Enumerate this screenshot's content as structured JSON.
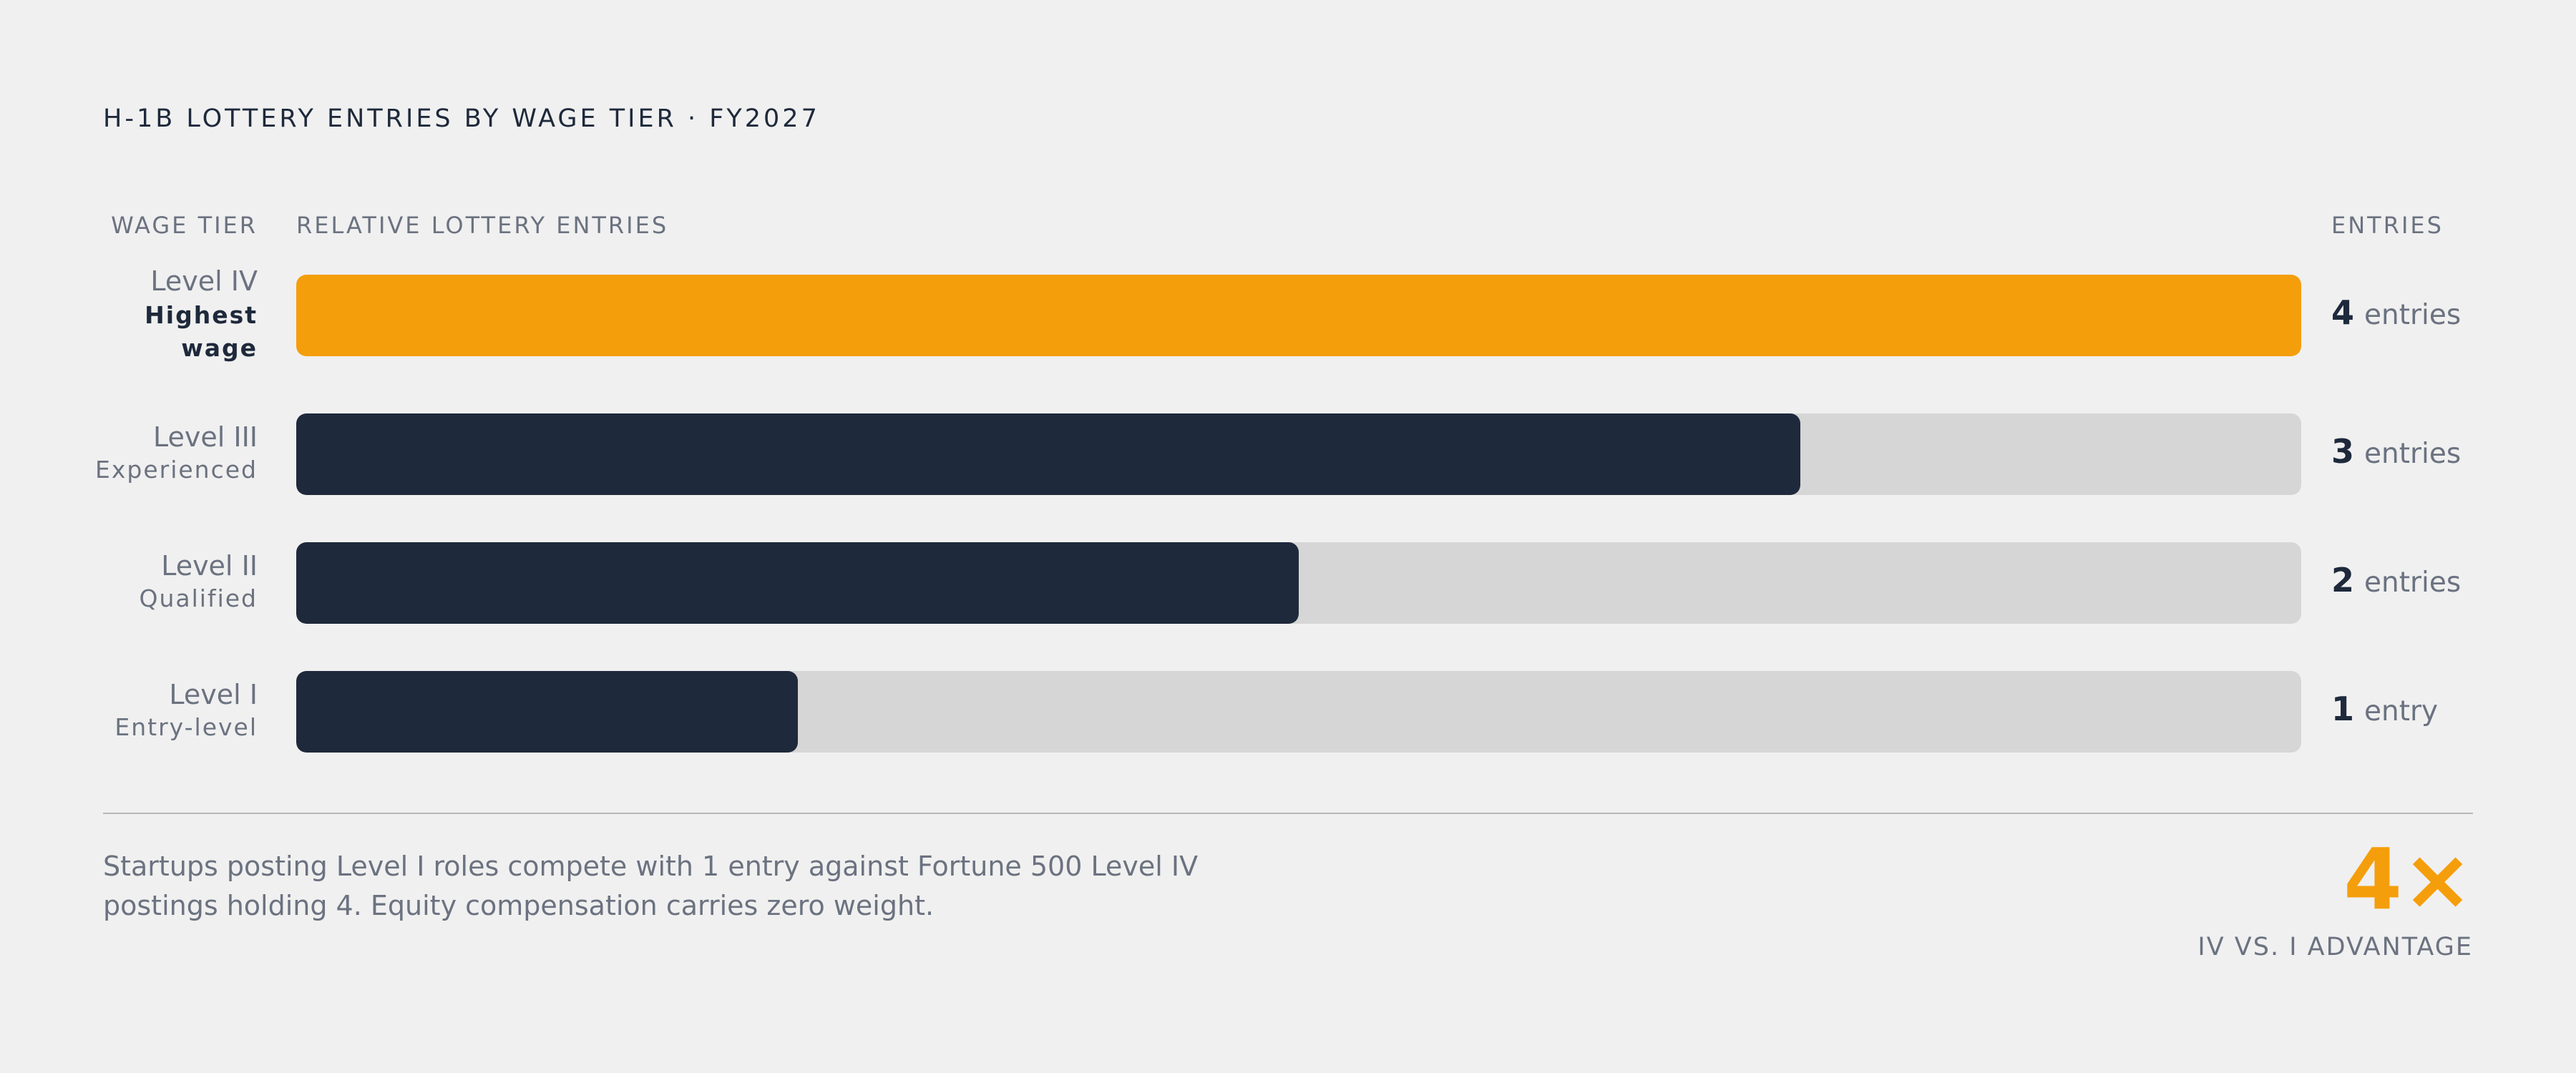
{
  "title": "H-1B LOTTERY ENTRIES BY WAGE TIER · FY2027",
  "columns": {
    "tier": "WAGE TIER",
    "relative": "RELATIVE LOTTERY ENTRIES",
    "entries": "ENTRIES"
  },
  "colors": {
    "highlight": "#f59e0b",
    "bar": "#1e293b",
    "track": "#d6d6d6"
  },
  "chart_data": {
    "type": "bar",
    "orientation": "horizontal",
    "title": "H-1B LOTTERY ENTRIES BY WAGE TIER · FY2027",
    "categories": [
      "Level IV",
      "Level III",
      "Level II",
      "Level I"
    ],
    "descriptions": [
      "Highest wage",
      "Experienced",
      "Qualified",
      "Entry-level"
    ],
    "values": [
      4,
      3,
      2,
      1
    ],
    "value_labels": [
      "entries",
      "entries",
      "entries",
      "entry"
    ],
    "xlim": [
      0,
      4
    ],
    "highlight_category": "Level IV",
    "grid": false,
    "legend": "none"
  },
  "footer": {
    "note": "Startups posting Level I roles compete with 1 entry against Fortune 500 Level IV postings holding 4. Equity compensation carries zero weight.",
    "big_value": "4×",
    "big_caption": "IV VS. I ADVANTAGE"
  }
}
